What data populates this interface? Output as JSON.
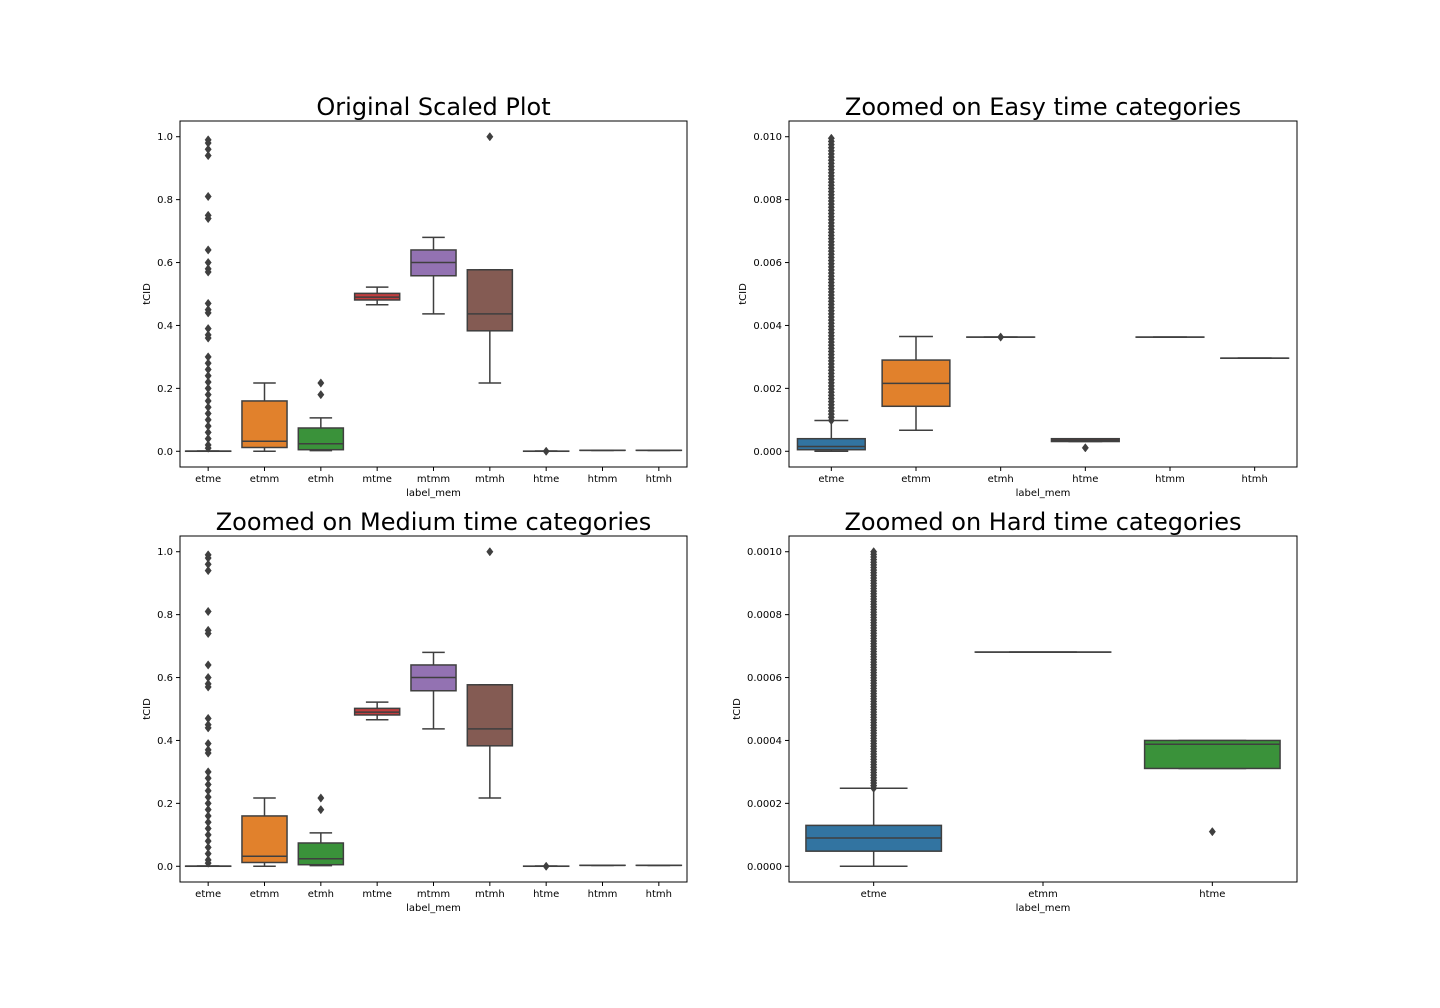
{
  "chart_data": [
    {
      "type": "box",
      "title": "Original Scaled Plot",
      "xlabel": "label_mem",
      "ylabel": "tCID",
      "ylim": [
        -0.05,
        1.05
      ],
      "yticks": [
        0.0,
        0.2,
        0.4,
        0.6,
        0.8,
        1.0
      ],
      "ytick_labels": [
        "0.0",
        "0.2",
        "0.4",
        "0.6",
        "0.8",
        "1.0"
      ],
      "grid": false,
      "categories": [
        "etme",
        "etmm",
        "etmh",
        "mtme",
        "mtmm",
        "mtmh",
        "htme",
        "htmm",
        "htmh"
      ],
      "boxes": [
        {
          "label": "etme",
          "color": "#3274a1",
          "whislo": 0.0,
          "q1": 0.0,
          "med": 0.0003,
          "q3": 0.0005,
          "whishi": 0.001,
          "fliers": [
            0.99,
            0.98,
            0.96,
            0.94,
            0.81,
            0.75,
            0.74,
            0.64,
            0.6,
            0.58,
            0.57,
            0.47,
            0.45,
            0.44,
            0.39,
            0.37,
            0.36,
            0.3,
            0.28,
            0.26,
            0.24,
            0.22,
            0.2,
            0.18,
            0.16,
            0.14,
            0.12,
            0.1,
            0.08,
            0.06,
            0.04,
            0.02,
            0.01
          ]
        },
        {
          "label": "etmm",
          "color": "#e1812c",
          "whislo": 0.0,
          "q1": 0.012,
          "med": 0.032,
          "q3": 0.16,
          "whishi": 0.217,
          "fliers": []
        },
        {
          "label": "etmh",
          "color": "#3a923a",
          "whislo": 0.002,
          "q1": 0.005,
          "med": 0.024,
          "q3": 0.074,
          "whishi": 0.106,
          "fliers": [
            0.217,
            0.18
          ]
        },
        {
          "label": "mtme",
          "color": "#c03d3e",
          "whislo": 0.466,
          "q1": 0.481,
          "med": 0.49,
          "q3": 0.502,
          "whishi": 0.522,
          "fliers": []
        },
        {
          "label": "mtmm",
          "color": "#9372b2",
          "whislo": 0.437,
          "q1": 0.558,
          "med": 0.6,
          "q3": 0.64,
          "whishi": 0.68,
          "fliers": []
        },
        {
          "label": "mtmh",
          "color": "#845b53",
          "whislo": 0.217,
          "q1": 0.383,
          "med": 0.437,
          "q3": 0.577,
          "whishi": 0.577,
          "fliers": [
            1.0
          ]
        },
        {
          "label": "htme",
          "color": "#d684bd",
          "whislo": 0.0,
          "q1": 0.0,
          "med": 0.0,
          "q3": 0.0005,
          "whishi": 0.001,
          "fliers": [
            0.0
          ]
        },
        {
          "label": "htmm",
          "color": "#7f7f7f",
          "whislo": 0.003,
          "q1": 0.003,
          "med": 0.003,
          "q3": 0.003,
          "whishi": 0.003,
          "fliers": []
        },
        {
          "label": "htmh",
          "color": "#a9aa35",
          "whislo": 0.003,
          "q1": 0.003,
          "med": 0.003,
          "q3": 0.003,
          "whishi": 0.003,
          "fliers": []
        }
      ]
    },
    {
      "type": "box",
      "title": "Zoomed on Easy time categories",
      "xlabel": "label_mem",
      "ylabel": "tCID",
      "ylim": [
        -0.0005,
        0.0105
      ],
      "yticks": [
        0.0,
        0.002,
        0.004,
        0.006,
        0.008,
        0.01
      ],
      "ytick_labels": [
        "0.000",
        "0.002",
        "0.004",
        "0.006",
        "0.008",
        "0.010"
      ],
      "grid": false,
      "categories": [
        "etme",
        "etmm",
        "etmh",
        "htme",
        "htmm",
        "htmh"
      ],
      "boxes": [
        {
          "label": "etme",
          "color": "#3274a1",
          "whislo": 0.0,
          "q1": 5e-05,
          "med": 0.00015,
          "q3": 0.0004,
          "whishi": 0.00098,
          "fliers_band": [
            0.00098,
            0.00995
          ],
          "fliers": []
        },
        {
          "label": "etmm",
          "color": "#e1812c",
          "whislo": 0.00067,
          "q1": 0.00143,
          "med": 0.00216,
          "q3": 0.0029,
          "whishi": 0.00365,
          "fliers": []
        },
        {
          "label": "etmh",
          "color": "#3a923a",
          "whislo": 0.00363,
          "q1": 0.00363,
          "med": 0.00363,
          "q3": 0.00363,
          "whishi": 0.00363,
          "fliers": [
            0.00363
          ]
        },
        {
          "label": "htme",
          "color": "#c03d3e",
          "whislo": 0.00031,
          "q1": 0.00031,
          "med": 0.00035,
          "q3": 0.0004,
          "whishi": 0.0004,
          "fliers": [
            0.00011
          ]
        },
        {
          "label": "htmm",
          "color": "#9372b2",
          "whislo": 0.00363,
          "q1": 0.00363,
          "med": 0.00363,
          "q3": 0.00363,
          "whishi": 0.00363,
          "fliers": []
        },
        {
          "label": "htmh",
          "color": "#845b53",
          "whislo": 0.00296,
          "q1": 0.00296,
          "med": 0.00296,
          "q3": 0.00296,
          "whishi": 0.00296,
          "fliers": []
        }
      ]
    },
    {
      "type": "box",
      "title": "Zoomed on Medium time categories",
      "xlabel": "label_mem",
      "ylabel": "tCID",
      "ylim": [
        -0.05,
        1.05
      ],
      "yticks": [
        0.0,
        0.2,
        0.4,
        0.6,
        0.8,
        1.0
      ],
      "ytick_labels": [
        "0.0",
        "0.2",
        "0.4",
        "0.6",
        "0.8",
        "1.0"
      ],
      "grid": false,
      "categories": [
        "etme",
        "etmm",
        "etmh",
        "mtme",
        "mtmm",
        "mtmh",
        "htme",
        "htmm",
        "htmh"
      ],
      "boxes": [
        {
          "label": "etme",
          "color": "#3274a1",
          "whislo": 0.0,
          "q1": 0.0,
          "med": 0.0003,
          "q3": 0.0005,
          "whishi": 0.001,
          "fliers": [
            0.99,
            0.98,
            0.96,
            0.94,
            0.81,
            0.75,
            0.74,
            0.64,
            0.6,
            0.58,
            0.57,
            0.47,
            0.45,
            0.44,
            0.39,
            0.37,
            0.36,
            0.3,
            0.28,
            0.26,
            0.24,
            0.22,
            0.2,
            0.18,
            0.16,
            0.14,
            0.12,
            0.1,
            0.08,
            0.06,
            0.04,
            0.02,
            0.01
          ]
        },
        {
          "label": "etmm",
          "color": "#e1812c",
          "whislo": 0.0,
          "q1": 0.012,
          "med": 0.032,
          "q3": 0.16,
          "whishi": 0.217,
          "fliers": []
        },
        {
          "label": "etmh",
          "color": "#3a923a",
          "whislo": 0.002,
          "q1": 0.005,
          "med": 0.024,
          "q3": 0.074,
          "whishi": 0.106,
          "fliers": [
            0.217,
            0.18
          ]
        },
        {
          "label": "mtme",
          "color": "#c03d3e",
          "whislo": 0.466,
          "q1": 0.481,
          "med": 0.49,
          "q3": 0.502,
          "whishi": 0.522,
          "fliers": []
        },
        {
          "label": "mtmm",
          "color": "#9372b2",
          "whislo": 0.437,
          "q1": 0.558,
          "med": 0.6,
          "q3": 0.64,
          "whishi": 0.68,
          "fliers": []
        },
        {
          "label": "mtmh",
          "color": "#845b53",
          "whislo": 0.217,
          "q1": 0.383,
          "med": 0.437,
          "q3": 0.577,
          "whishi": 0.577,
          "fliers": [
            1.0
          ]
        },
        {
          "label": "htme",
          "color": "#d684bd",
          "whislo": 0.0,
          "q1": 0.0,
          "med": 0.0,
          "q3": 0.0005,
          "whishi": 0.001,
          "fliers": [
            0.0
          ]
        },
        {
          "label": "htmm",
          "color": "#7f7f7f",
          "whislo": 0.003,
          "q1": 0.003,
          "med": 0.003,
          "q3": 0.003,
          "whishi": 0.003,
          "fliers": []
        },
        {
          "label": "htmh",
          "color": "#a9aa35",
          "whislo": 0.003,
          "q1": 0.003,
          "med": 0.003,
          "q3": 0.003,
          "whishi": 0.003,
          "fliers": []
        }
      ]
    },
    {
      "type": "box",
      "title": "Zoomed on Hard time categories",
      "xlabel": "label_mem",
      "ylabel": "tCID",
      "ylim": [
        -5e-05,
        0.00105
      ],
      "yticks": [
        0.0,
        0.0002,
        0.0004,
        0.0006,
        0.0008,
        0.001
      ],
      "ytick_labels": [
        "0.0000",
        "0.0002",
        "0.0004",
        "0.0006",
        "0.0008",
        "0.0010"
      ],
      "grid": false,
      "categories": [
        "etme",
        "etmm",
        "htme"
      ],
      "boxes": [
        {
          "label": "etme",
          "color": "#3274a1",
          "whislo": 0.0,
          "q1": 4.8e-05,
          "med": 9e-05,
          "q3": 0.00013,
          "whishi": 0.000248,
          "fliers_band": [
            0.000248,
            0.001
          ],
          "fliers": []
        },
        {
          "label": "etmm",
          "color": "#e1812c",
          "whislo": 0.000681,
          "q1": 0.000681,
          "med": 0.000681,
          "q3": 0.000681,
          "whishi": 0.000681,
          "fliers": []
        },
        {
          "label": "htme",
          "color": "#3a923a",
          "whislo": 0.000311,
          "q1": 0.000311,
          "med": 0.000388,
          "q3": 0.0004,
          "whishi": 0.0004,
          "fliers": [
            0.00011
          ]
        }
      ]
    }
  ]
}
